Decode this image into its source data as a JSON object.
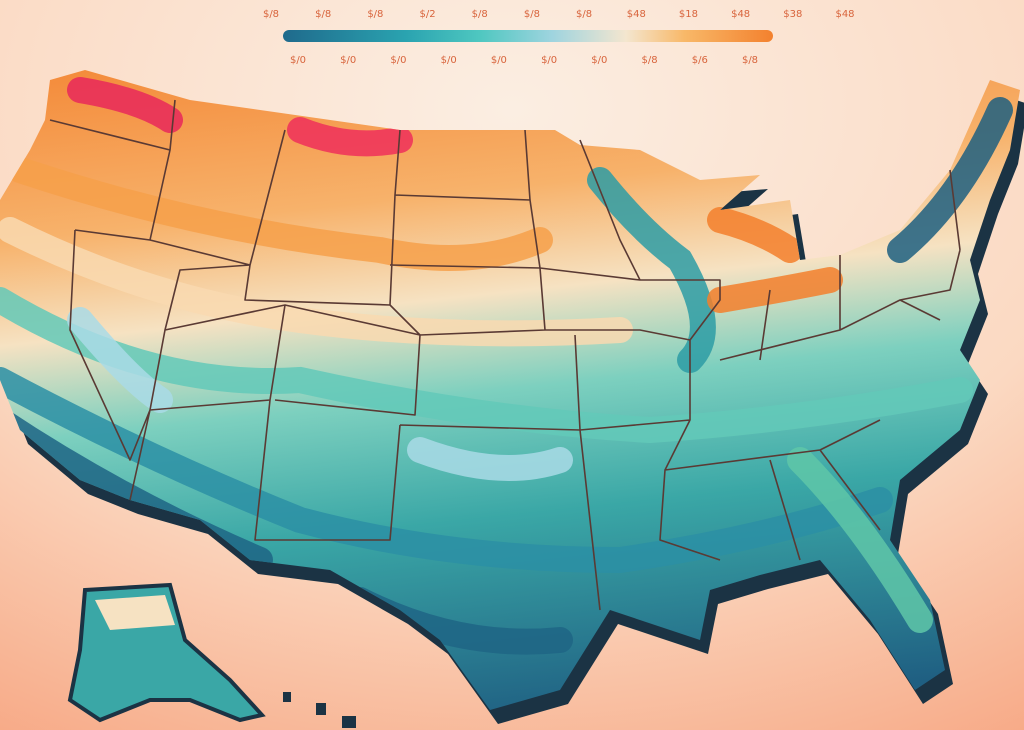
{
  "legend": {
    "top_labels": [
      "$/8",
      "$/8",
      "$/8",
      "$/2",
      "$/8",
      "$/8",
      "$/8",
      "$48",
      "$18",
      "$48",
      "$38",
      "$48"
    ],
    "bottom_labels": [
      "$/0",
      "$/0",
      "$/0",
      "$/0",
      "$/0",
      "$/0",
      "$/0",
      "$/8",
      "$/6",
      "$/8"
    ]
  }
}
